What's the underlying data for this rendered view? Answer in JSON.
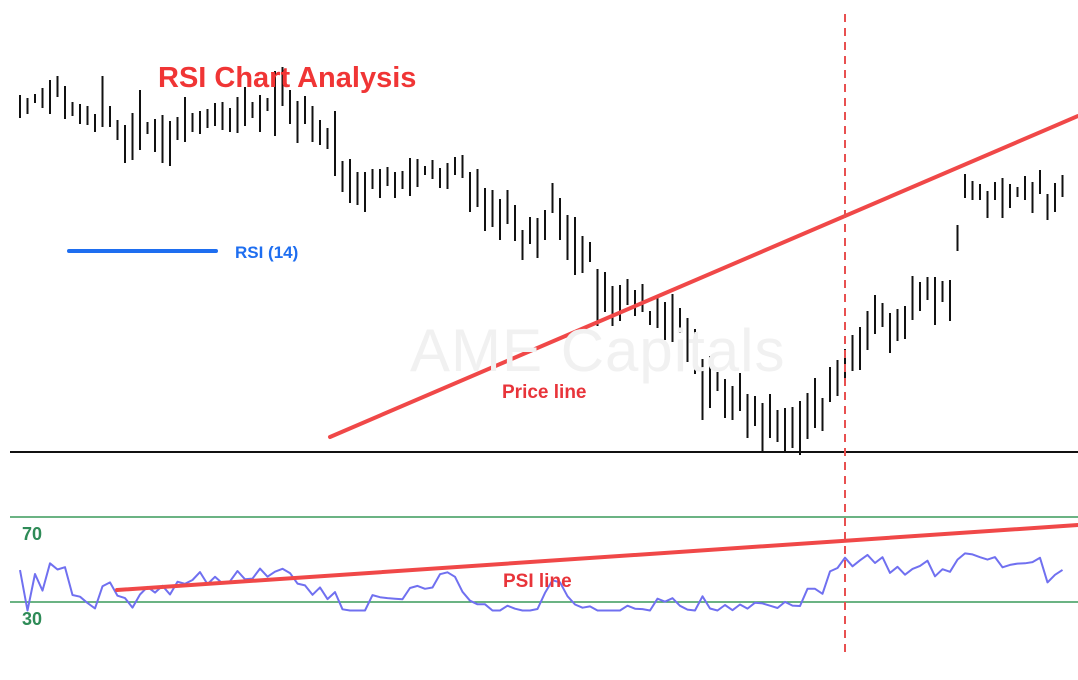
{
  "chart_data": {
    "type": "bar",
    "title": "RSI Chart Analysis",
    "legend": {
      "label": "RSI (14)",
      "color": "#1e6ef0",
      "placement": "left"
    },
    "price_ohlc_bars": [
      [
        399,
        382,
        405
      ],
      [
        391,
        386,
        402
      ],
      [
        401,
        397,
        406
      ],
      [
        395,
        392,
        412
      ],
      [
        412,
        386,
        420
      ],
      [
        409,
        403,
        424
      ],
      [
        411,
        381,
        414
      ],
      [
        391,
        384,
        398
      ],
      [
        389,
        376,
        396
      ],
      [
        381,
        375,
        394
      ],
      [
        372,
        368,
        386
      ],
      [
        389,
        373,
        424
      ],
      [
        393,
        373,
        394
      ],
      [
        376,
        360,
        380
      ],
      [
        372,
        337,
        375
      ],
      [
        352,
        340,
        387
      ],
      [
        365,
        350,
        410
      ],
      [
        374,
        366,
        378
      ],
      [
        365,
        348,
        381
      ],
      [
        373,
        337,
        385
      ],
      [
        359,
        334,
        379
      ],
      [
        376,
        360,
        383
      ],
      [
        373,
        358,
        403
      ],
      [
        378,
        368,
        387
      ],
      [
        390,
        366,
        389
      ],
      [
        375,
        372,
        391
      ],
      [
        386,
        374,
        397
      ],
      [
        377,
        370,
        398
      ],
      [
        380,
        368,
        392
      ],
      [
        396,
        367,
        403
      ],
      [
        386,
        374,
        413
      ],
      [
        387,
        382,
        398
      ],
      [
        403,
        368,
        405
      ],
      [
        394,
        389,
        402
      ],
      [
        402,
        364,
        429
      ],
      [
        407,
        394,
        433
      ],
      [
        403,
        376,
        410
      ],
      [
        392,
        357,
        399
      ],
      [
        390,
        376,
        404
      ],
      [
        378,
        358,
        394
      ],
      [
        385,
        355,
        380
      ],
      [
        367,
        351,
        372
      ],
      [
        374,
        324,
        389
      ],
      [
        330,
        308,
        339
      ],
      [
        319,
        297,
        341
      ],
      [
        308,
        295,
        328
      ],
      [
        311,
        288,
        328
      ],
      [
        330,
        311,
        331
      ],
      [
        325,
        302,
        331
      ],
      [
        323,
        314,
        333
      ],
      [
        322,
        302,
        328
      ],
      [
        321,
        311,
        329
      ],
      [
        331,
        304,
        342
      ],
      [
        333,
        313,
        341
      ],
      [
        330,
        325,
        334
      ],
      [
        331,
        321,
        340
      ],
      [
        343,
        312,
        332
      ],
      [
        345,
        311,
        337
      ],
      [
        342,
        325,
        343
      ],
      [
        329,
        322,
        345
      ],
      [
        317,
        288,
        328
      ],
      [
        311,
        293,
        331
      ],
      [
        311,
        269,
        312
      ],
      [
        299,
        273,
        310
      ],
      [
        281,
        260,
        301
      ],
      [
        289,
        276,
        310
      ],
      [
        282,
        259,
        295
      ],
      [
        272,
        240,
        270
      ],
      [
        272,
        256,
        283
      ],
      [
        274,
        242,
        282
      ],
      [
        285,
        260,
        290
      ],
      [
        297,
        287,
        317
      ],
      [
        295,
        260,
        302
      ],
      [
        278,
        240,
        285
      ],
      [
        262,
        225,
        283
      ],
      [
        254,
        227,
        264
      ],
      [
        255,
        238,
        258
      ],
      [
        223,
        174,
        231
      ],
      [
        205,
        188,
        228
      ],
      [
        202,
        174,
        214
      ],
      [
        196,
        179,
        215
      ],
      [
        209,
        195,
        221
      ],
      [
        200,
        184,
        210
      ],
      [
        199,
        188,
        216
      ],
      [
        189,
        175,
        189
      ],
      [
        201,
        172,
        205
      ],
      [
        195,
        160,
        198
      ],
      [
        198,
        158,
        206
      ],
      [
        183,
        167,
        192
      ],
      [
        173,
        138,
        182
      ],
      [
        149,
        126,
        171
      ],
      [
        171,
        80,
        141
      ],
      [
        128,
        92,
        144
      ],
      [
        117,
        109,
        128
      ],
      [
        125,
        82,
        121
      ],
      [
        102,
        80,
        114
      ],
      [
        110,
        89,
        127
      ],
      [
        93,
        62,
        106
      ],
      [
        101,
        74,
        104
      ],
      [
        99,
        48,
        97
      ],
      [
        92,
        62,
        106
      ],
      [
        85,
        58,
        90
      ],
      [
        91,
        48,
        92
      ],
      [
        82,
        52,
        93
      ],
      [
        81,
        45,
        99
      ],
      [
        98,
        61,
        107
      ],
      [
        98,
        72,
        122
      ],
      [
        91,
        69,
        102
      ],
      [
        122,
        98,
        133
      ],
      [
        129,
        104,
        140
      ],
      [
        159,
        119,
        151
      ],
      [
        148,
        129,
        165
      ],
      [
        167,
        130,
        173
      ],
      [
        190,
        150,
        189
      ],
      [
        179,
        166,
        205
      ],
      [
        202,
        173,
        197
      ],
      [
        176,
        147,
        187
      ],
      [
        196,
        159,
        191
      ],
      [
        181,
        161,
        194
      ],
      [
        199,
        180,
        224
      ],
      [
        209,
        189,
        218
      ],
      [
        229,
        200,
        223
      ],
      [
        200,
        175,
        223
      ],
      [
        223,
        198,
        219
      ],
      [
        218,
        179,
        220
      ],
      [
        269,
        249,
        275
      ],
      [
        314,
        302,
        326
      ],
      [
        312,
        300,
        319
      ],
      [
        307,
        300,
        316
      ],
      [
        303,
        282,
        309
      ],
      [
        315,
        300,
        318
      ],
      [
        299,
        282,
        322
      ],
      [
        307,
        292,
        316
      ],
      [
        311,
        303,
        313
      ],
      [
        312,
        300,
        324
      ],
      [
        315,
        287,
        318
      ],
      [
        327,
        306,
        330
      ],
      [
        294,
        280,
        306
      ],
      [
        310,
        288,
        317
      ],
      [
        322,
        303,
        325
      ]
    ],
    "trendlines": [
      {
        "label": "Price line",
        "pane": "price",
        "from_bar": 44,
        "to_bar": 138,
        "color": "#f04848"
      },
      {
        "label": "PSI line",
        "pane": "rsi",
        "from_bar": 12,
        "to_bar": 138,
        "color": "#f04848"
      }
    ],
    "rsi_series": {
      "name": "RSI (14)",
      "color": "#7070f0"
    },
    "rsi_levels": [
      {
        "label": "70",
        "value": 70,
        "color": "#3a9a5a"
      },
      {
        "label": "30",
        "value": 30,
        "color": "#3a9a5a"
      }
    ],
    "grid": false,
    "xlabel": "",
    "ylabel": ""
  },
  "colors": {
    "title": "#f03535",
    "annotation": "#e8343a",
    "level_label": "#2e8b57",
    "legend_text": "#1e6ef0",
    "divider": "#e85050"
  },
  "watermark": {
    "text": "AME Capitals"
  }
}
